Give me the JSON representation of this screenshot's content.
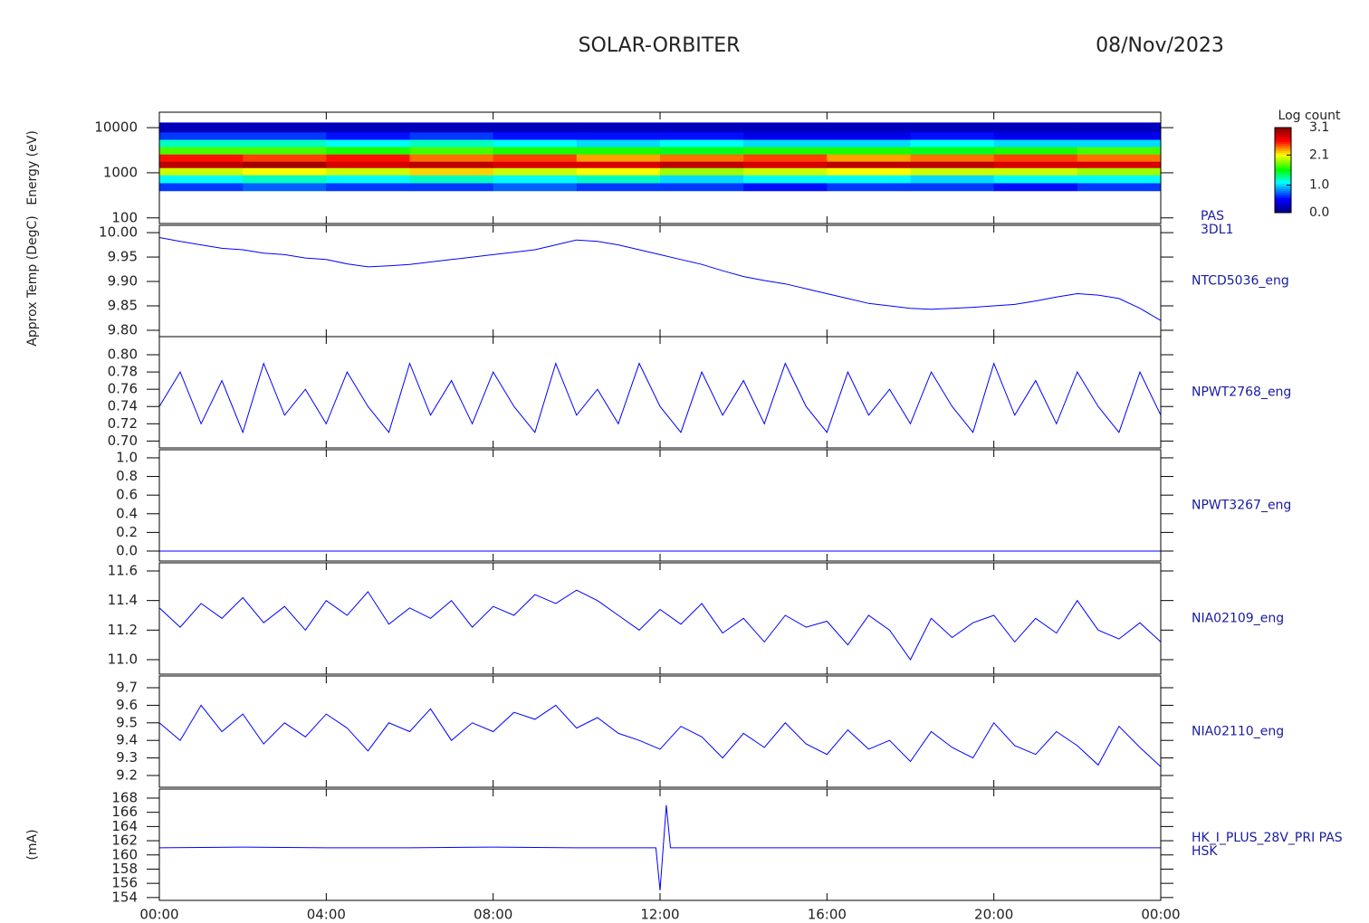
{
  "title": "SOLAR-ORBITER",
  "date": "08/Nov/2023",
  "chart_data": [
    {
      "type": "heatmap",
      "ylabel": "Energy (eV)",
      "label": [
        "PAS",
        "3DL1"
      ],
      "log": true,
      "ylim": [
        75,
        22000
      ],
      "yticks": [
        100,
        1000,
        10000
      ],
      "xbins": [
        0,
        2,
        4,
        6,
        8,
        10,
        12,
        14,
        16,
        18,
        20,
        22,
        24
      ],
      "ybins": [
        400,
        600,
        900,
        1300,
        1800,
        2600,
        3800,
        5500,
        8000,
        13000
      ],
      "z": [
        [
          0.6,
          0.7,
          0.6,
          0.6,
          0.7,
          0.6,
          0.6,
          0.5,
          0.6,
          0.6,
          0.5,
          0.6
        ],
        [
          1.1,
          1.2,
          1.1,
          1.2,
          1.1,
          1.2,
          1.0,
          1.1,
          1.1,
          1.0,
          1.1,
          1.1
        ],
        [
          2.0,
          2.1,
          2.0,
          2.2,
          2.0,
          2.1,
          1.9,
          2.0,
          2.1,
          2.0,
          2.0,
          1.9
        ],
        [
          2.9,
          3.0,
          2.8,
          2.9,
          2.8,
          2.8,
          2.9,
          2.8,
          2.9,
          2.9,
          2.8,
          2.8
        ],
        [
          2.6,
          2.5,
          2.6,
          2.4,
          2.5,
          2.3,
          2.4,
          2.5,
          2.3,
          2.4,
          2.5,
          2.4
        ],
        [
          1.7,
          1.7,
          1.6,
          1.7,
          1.6,
          1.6,
          1.5,
          1.6,
          1.6,
          1.5,
          1.6,
          1.7
        ],
        [
          1.2,
          1.2,
          1.1,
          1.2,
          1.1,
          1.0,
          1.1,
          1.0,
          1.0,
          1.1,
          1.0,
          1.0
        ],
        [
          0.6,
          0.6,
          0.5,
          0.6,
          0.5,
          0.5,
          0.5,
          0.4,
          0.4,
          0.5,
          0.4,
          0.4
        ],
        [
          0.2,
          0.2,
          0.2,
          0.2,
          0.2,
          0.2,
          0.2,
          0.2,
          0.2,
          0.2,
          0.2,
          0.2
        ]
      ],
      "colorbar": {
        "label": "Log count",
        "zlim": [
          0,
          3.1
        ],
        "ticks": [
          {
            "value": 0,
            "label": "0.0"
          },
          {
            "value": 1,
            "label": "1.0"
          },
          2.1,
          3.1
        ]
      }
    },
    {
      "type": "line",
      "ylabel": "Approx Temp (DegC)",
      "label": [
        "NTCD5036_eng"
      ],
      "color": "#0000ff",
      "ylim": [
        9.787,
        10.015
      ],
      "yticks": [
        {
          "value": 9.8,
          "label": "9.80"
        },
        9.85,
        {
          "value": 9.9,
          "label": "9.90"
        },
        9.95,
        {
          "value": 10,
          "label": "10.00"
        }
      ],
      "x": [
        0,
        0.5,
        1,
        1.5,
        2,
        2.5,
        3,
        3.5,
        4,
        4.5,
        5,
        5.5,
        6,
        6.5,
        7,
        7.5,
        8,
        8.5,
        9,
        9.5,
        10,
        10.5,
        11,
        11.5,
        12,
        12.5,
        13,
        13.5,
        14,
        14.5,
        15,
        15.5,
        16,
        16.5,
        17,
        17.5,
        18,
        18.5,
        19,
        19.5,
        20,
        20.5,
        21,
        21.5,
        22,
        22.5,
        23,
        23.5,
        24
      ],
      "values": [
        9.99,
        9.982,
        9.975,
        9.968,
        9.965,
        9.958,
        9.955,
        9.948,
        9.945,
        9.936,
        9.93,
        9.932,
        9.935,
        9.94,
        9.945,
        9.95,
        9.955,
        9.96,
        9.965,
        9.975,
        9.985,
        9.982,
        9.975,
        9.965,
        9.955,
        9.945,
        9.935,
        9.922,
        9.91,
        9.902,
        9.895,
        9.885,
        9.875,
        9.865,
        9.855,
        9.85,
        9.845,
        9.843,
        9.845,
        9.847,
        9.85,
        9.853,
        9.86,
        9.868,
        9.875,
        9.872,
        9.865,
        9.845,
        9.82
      ]
    },
    {
      "type": "line",
      "label": [
        "NPWT2768_eng"
      ],
      "color": "#0000ff",
      "ylim": [
        0.692,
        0.821
      ],
      "yticks": [
        {
          "value": 0.7,
          "label": "0.70"
        },
        0.72,
        0.74,
        0.76,
        0.78,
        {
          "value": 0.8,
          "label": "0.80"
        }
      ],
      "x": [
        0,
        0.5,
        1,
        1.5,
        2,
        2.5,
        3,
        3.5,
        4,
        4.5,
        5,
        5.5,
        6,
        6.5,
        7,
        7.5,
        8,
        8.5,
        9,
        9.5,
        10,
        10.5,
        11,
        11.5,
        12,
        12.5,
        13,
        13.5,
        14,
        14.5,
        15,
        15.5,
        16,
        16.5,
        17,
        17.5,
        18,
        18.5,
        19,
        19.5,
        20,
        20.5,
        21,
        21.5,
        22,
        22.5,
        23,
        23.5,
        24
      ],
      "values": [
        0.74,
        0.78,
        0.72,
        0.77,
        0.71,
        0.79,
        0.73,
        0.76,
        0.72,
        0.78,
        0.74,
        0.71,
        0.79,
        0.73,
        0.77,
        0.72,
        0.78,
        0.74,
        0.71,
        0.79,
        0.73,
        0.76,
        0.72,
        0.79,
        0.74,
        0.71,
        0.78,
        0.73,
        0.77,
        0.72,
        0.79,
        0.74,
        0.71,
        0.78,
        0.73,
        0.76,
        0.72,
        0.78,
        0.74,
        0.71,
        0.79,
        0.73,
        0.77,
        0.72,
        0.78,
        0.74,
        0.71,
        0.78,
        0.73
      ]
    },
    {
      "type": "line",
      "label": [
        "NPWT3267_eng"
      ],
      "color": "#0000ff",
      "ylim": [
        -0.107,
        1.087
      ],
      "yticks": [
        {
          "value": 0,
          "label": "0.0"
        },
        0.2,
        0.4,
        0.6,
        0.8,
        {
          "value": 1,
          "label": "1.0"
        }
      ],
      "x": [
        0,
        0.5,
        1,
        1.5,
        2,
        2.5,
        3,
        3.5,
        4,
        4.5,
        5,
        5.5,
        6,
        6.5,
        7,
        7.5,
        8,
        8.5,
        9,
        9.5,
        10,
        10.5,
        11,
        11.5,
        12,
        12.5,
        13,
        13.5,
        14,
        14.5,
        15,
        15.5,
        16,
        16.5,
        17,
        17.5,
        18,
        18.5,
        19,
        19.5,
        20,
        20.5,
        21,
        21.5,
        22,
        22.5,
        23,
        23.5,
        24
      ],
      "values": [
        0,
        0,
        0,
        0,
        0,
        0,
        0,
        0,
        0,
        0,
        0,
        0,
        0,
        0,
        0,
        0,
        0,
        0,
        0,
        0,
        0,
        0,
        0,
        0,
        0,
        0,
        0,
        0,
        0,
        0,
        0,
        0,
        0,
        0,
        0,
        0,
        0,
        0,
        0,
        0,
        0,
        0,
        0,
        0,
        0,
        0,
        0,
        0,
        0
      ]
    },
    {
      "type": "line",
      "label": [
        "NIA02109_eng"
      ],
      "color": "#0000ff",
      "ylim": [
        10.902,
        11.655
      ],
      "yticks": [
        {
          "value": 11,
          "label": "11.0"
        },
        11.2,
        11.4,
        11.6
      ],
      "x": [
        0,
        0.5,
        1,
        1.5,
        2,
        2.5,
        3,
        3.5,
        4,
        4.5,
        5,
        5.5,
        6,
        6.5,
        7,
        7.5,
        8,
        8.5,
        9,
        9.5,
        10,
        10.5,
        11,
        11.5,
        12,
        12.5,
        13,
        13.5,
        14,
        14.5,
        15,
        15.5,
        16,
        16.5,
        17,
        17.5,
        18,
        18.5,
        19,
        19.5,
        20,
        20.5,
        21,
        21.5,
        22,
        22.5,
        23,
        23.5,
        24
      ],
      "values": [
        11.35,
        11.22,
        11.38,
        11.28,
        11.42,
        11.25,
        11.36,
        11.2,
        11.4,
        11.3,
        11.46,
        11.24,
        11.35,
        11.28,
        11.4,
        11.22,
        11.36,
        11.3,
        11.44,
        11.38,
        11.47,
        11.4,
        11.3,
        11.2,
        11.34,
        11.24,
        11.38,
        11.18,
        11.28,
        11.12,
        11.3,
        11.22,
        11.26,
        11.1,
        11.3,
        11.2,
        11.0,
        11.28,
        11.15,
        11.25,
        11.3,
        11.12,
        11.28,
        11.18,
        11.4,
        11.2,
        11.14,
        11.25,
        11.12
      ]
    },
    {
      "type": "line",
      "label": [
        "NIA02110_eng"
      ],
      "color": "#0000ff",
      "ylim": [
        9.133,
        9.767
      ],
      "yticks": [
        9.2,
        9.3,
        9.4,
        9.5,
        9.6,
        9.7
      ],
      "x": [
        0,
        0.5,
        1,
        1.5,
        2,
        2.5,
        3,
        3.5,
        4,
        4.5,
        5,
        5.5,
        6,
        6.5,
        7,
        7.5,
        8,
        8.5,
        9,
        9.5,
        10,
        10.5,
        11,
        11.5,
        12,
        12.5,
        13,
        13.5,
        14,
        14.5,
        15,
        15.5,
        16,
        16.5,
        17,
        17.5,
        18,
        18.5,
        19,
        19.5,
        20,
        20.5,
        21,
        21.5,
        22,
        22.5,
        23,
        23.5,
        24
      ],
      "values": [
        9.5,
        9.4,
        9.6,
        9.45,
        9.55,
        9.38,
        9.5,
        9.42,
        9.55,
        9.47,
        9.34,
        9.5,
        9.45,
        9.58,
        9.4,
        9.5,
        9.45,
        9.56,
        9.52,
        9.6,
        9.47,
        9.53,
        9.44,
        9.4,
        9.35,
        9.48,
        9.42,
        9.3,
        9.44,
        9.36,
        9.5,
        9.38,
        9.32,
        9.46,
        9.35,
        9.4,
        9.28,
        9.45,
        9.36,
        9.3,
        9.5,
        9.37,
        9.32,
        9.45,
        9.37,
        9.26,
        9.48,
        9.36,
        9.25
      ]
    },
    {
      "type": "line",
      "ylabel": "(mA)",
      "label": [
        "HK_I_PLUS_28V_PRI PAS",
        "HSK"
      ],
      "color": "#0000ff",
      "ylim": [
        153.6,
        169.27
      ],
      "yticks": [
        154,
        156,
        158,
        160,
        162,
        164,
        166,
        168
      ],
      "x": [
        0,
        2,
        4,
        6,
        8,
        10,
        11.9,
        12,
        12.15,
        12.25,
        14,
        16,
        18,
        20,
        22,
        24
      ],
      "values": [
        161,
        161.1,
        161,
        161,
        161.1,
        161,
        161,
        155,
        167,
        161,
        161,
        161,
        161,
        161,
        161,
        161
      ],
      "xlim": [
        0,
        24
      ],
      "xticks": [
        {
          "value": 0,
          "label": "00:00"
        },
        {
          "value": 4,
          "label": "04:00"
        },
        {
          "value": 8,
          "label": "08:00"
        },
        {
          "value": 12,
          "label": "12:00"
        },
        {
          "value": 16,
          "label": "16:00"
        },
        {
          "value": 20,
          "label": "20:00"
        },
        {
          "value": 24,
          "label": "00:00"
        }
      ]
    }
  ]
}
